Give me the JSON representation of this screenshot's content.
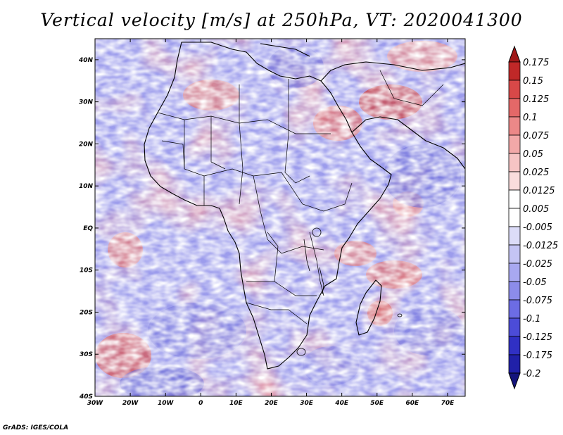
{
  "title": "Vertical velocity [m/s] at 250hPa, VT: 2020041300",
  "credit": "GrADS: IGES/COLA",
  "map": {
    "lon_range": [
      -30,
      75
    ],
    "lat_range": [
      -40,
      45
    ],
    "lon_ticks": [
      {
        "value": -30,
        "label": "30W"
      },
      {
        "value": -20,
        "label": "20W"
      },
      {
        "value": -10,
        "label": "10W"
      },
      {
        "value": 0,
        "label": "0"
      },
      {
        "value": 10,
        "label": "10E"
      },
      {
        "value": 20,
        "label": "20E"
      },
      {
        "value": 30,
        "label": "30E"
      },
      {
        "value": 40,
        "label": "40E"
      },
      {
        "value": 50,
        "label": "50E"
      },
      {
        "value": 60,
        "label": "60E"
      },
      {
        "value": 70,
        "label": "70E"
      }
    ],
    "lat_ticks": [
      {
        "value": 40,
        "label": "40N"
      },
      {
        "value": 30,
        "label": "30N"
      },
      {
        "value": 20,
        "label": "20N"
      },
      {
        "value": 10,
        "label": "10N"
      },
      {
        "value": 0,
        "label": "EQ"
      },
      {
        "value": -10,
        "label": "10S"
      },
      {
        "value": -20,
        "label": "20S"
      },
      {
        "value": -30,
        "label": "30S"
      },
      {
        "value": -40,
        "label": "40S"
      }
    ]
  },
  "colorbar": {
    "labels": [
      "0.175",
      "0.15",
      "0.125",
      "0.1",
      "0.075",
      "0.05",
      "0.025",
      "0.0125",
      "0.005",
      "-0.005",
      "-0.0125",
      "-0.025",
      "-0.05",
      "-0.075",
      "-0.1",
      "-0.125",
      "-0.175",
      "-0.2"
    ],
    "colors": [
      "#a01818",
      "#c02828",
      "#d84848",
      "#e46868",
      "#ec8888",
      "#f2a8a8",
      "#f6c4c4",
      "#fadcdc",
      "#ffffff",
      "#ffffff",
      "#dcdcf8",
      "#c4c4f4",
      "#a8a8f0",
      "#8c8cea",
      "#6c6ce4",
      "#4c4cd8",
      "#3030c4",
      "#2020a8",
      "#14147c"
    ]
  }
}
